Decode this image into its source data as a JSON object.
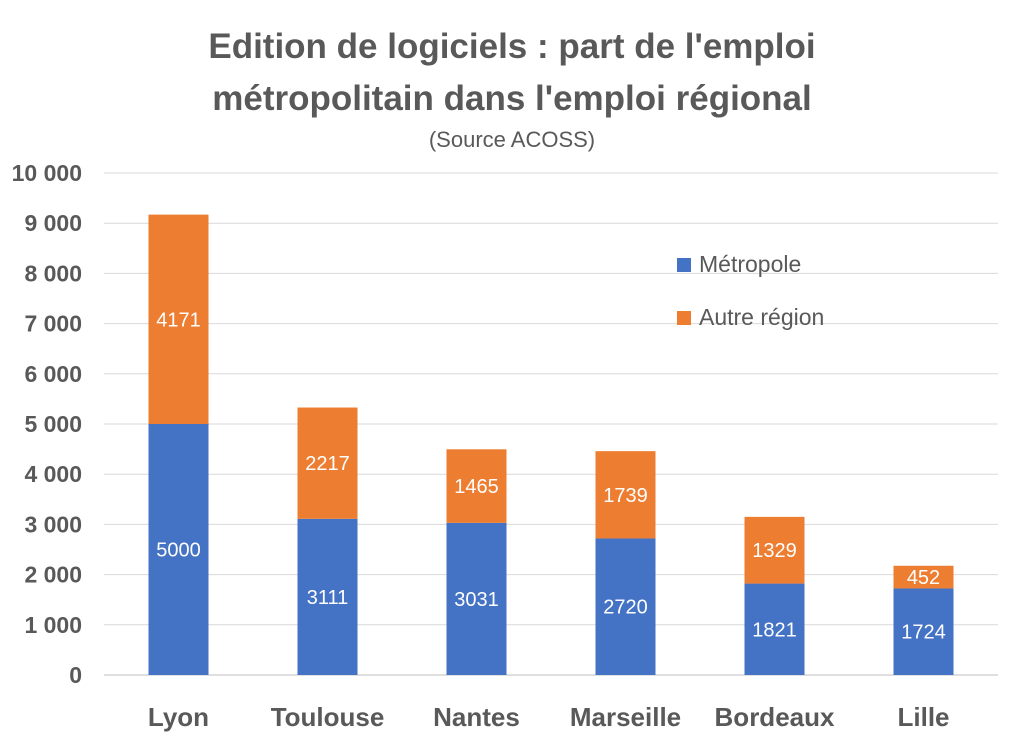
{
  "chart_data": {
    "type": "bar",
    "stacked": true,
    "title_lines": [
      "Edition de logiciels : part de l'emploi",
      "métropolitain dans l'emploi régional"
    ],
    "subtitle": "(Source ACOSS)",
    "categories": [
      "Lyon",
      "Toulouse",
      "Nantes",
      "Marseille",
      "Bordeaux",
      "Lille"
    ],
    "series": [
      {
        "name": "Métropole",
        "color": "#4472C4",
        "values": [
          5000,
          3111,
          3031,
          2720,
          1821,
          1724
        ]
      },
      {
        "name": "Autre région",
        "color": "#ED7D31",
        "values": [
          4171,
          2217,
          1465,
          1739,
          1329,
          452
        ]
      }
    ],
    "data_labels": [
      [
        "5000",
        "3111",
        "3031",
        "2720",
        "1821",
        "1724"
      ],
      [
        "4171",
        "2217",
        "1465",
        "1739",
        "1329",
        "452"
      ]
    ],
    "ylim": [
      0,
      10000
    ],
    "y_ticks": [
      0,
      1000,
      2000,
      3000,
      4000,
      5000,
      6000,
      7000,
      8000,
      9000,
      10000
    ],
    "y_tick_labels": [
      "0",
      "1 000",
      "2 000",
      "3 000",
      "4 000",
      "5 000",
      "6 000",
      "7 000",
      "8 000",
      "9 000",
      "10 000"
    ],
    "grid": true,
    "legend_position": "top-right"
  }
}
